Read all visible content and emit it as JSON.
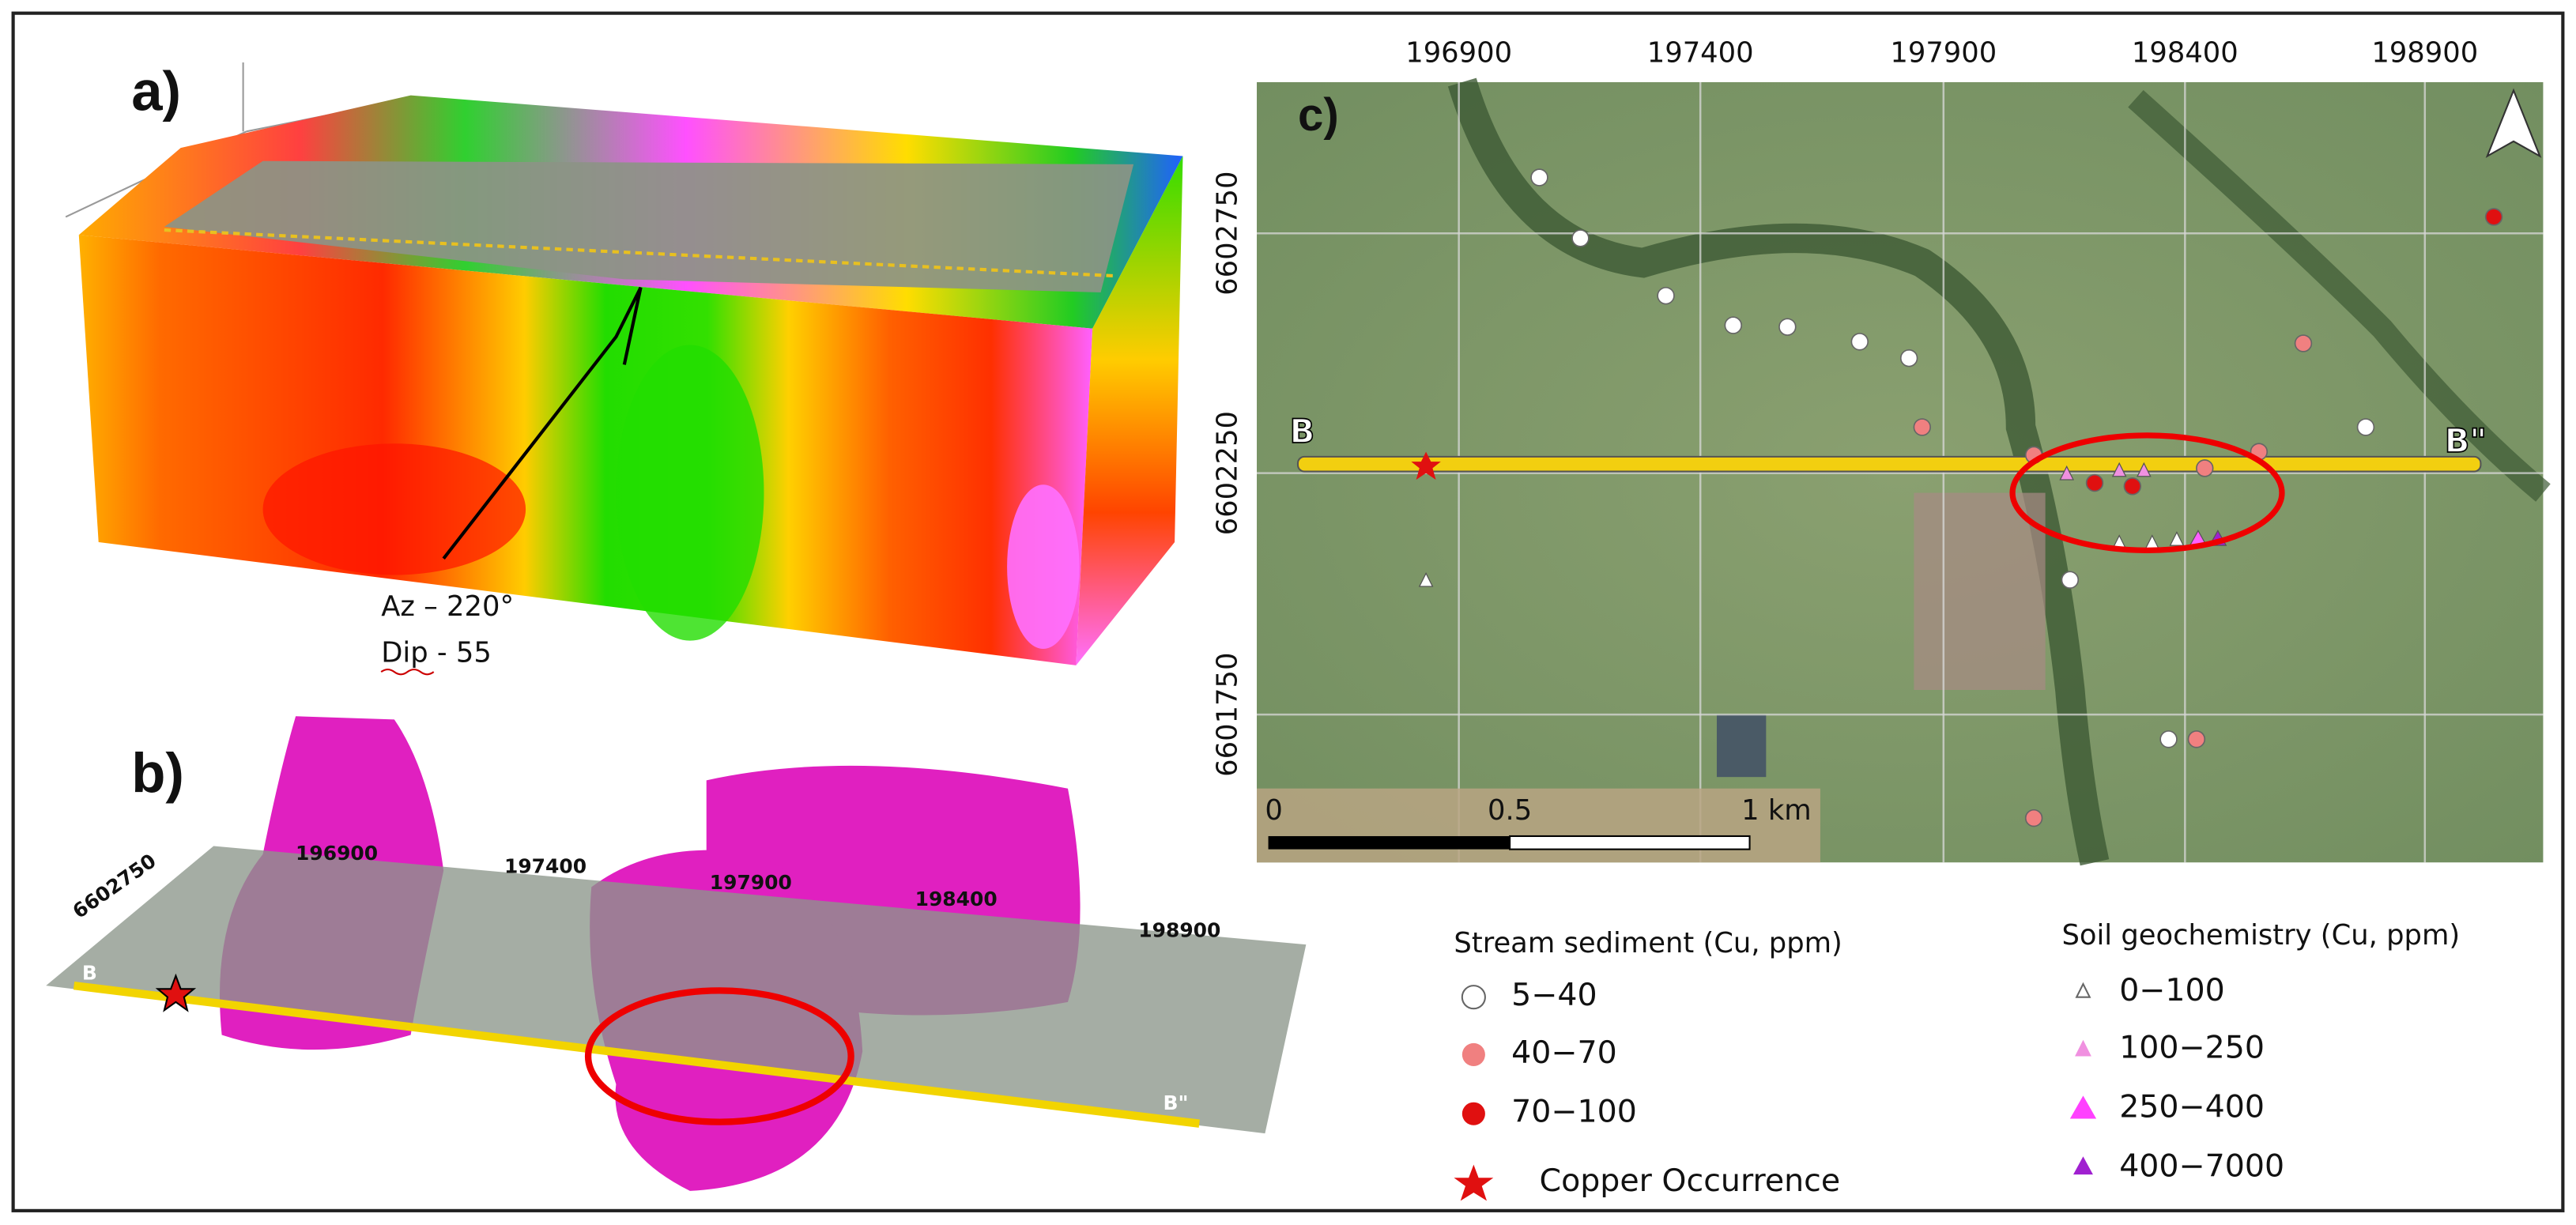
{
  "panels": {
    "a": {
      "label": "a)",
      "annotations": [
        "Az – 220°",
        "Dip - 55"
      ]
    },
    "b": {
      "label": "b)",
      "y_label": "6602750",
      "x_labels": [
        "196900",
        "197400",
        "197900",
        "198400",
        "198900"
      ],
      "line_labels": [
        "B",
        "B\""
      ]
    },
    "c": {
      "label": "c)",
      "x_labels": [
        "196900",
        "197400",
        "197900",
        "198400",
        "198900"
      ],
      "y_labels": [
        "6602750",
        "6602250",
        "6601750"
      ],
      "line_labels": [
        "B",
        "B\""
      ],
      "scale_labels": [
        "0",
        "0.5",
        "1 km"
      ]
    }
  },
  "legend": {
    "stream_sediment": {
      "title": "Stream sediment (Cu, ppm)",
      "items": [
        "5−40",
        "40−70",
        "70−100"
      ]
    },
    "copper_occurrence": "Copper Occurrence",
    "soil": {
      "title": "Soil geochemistry (Cu, ppm)",
      "items": [
        "0−100",
        "100−250",
        "250−400",
        "400−7000"
      ]
    }
  }
}
